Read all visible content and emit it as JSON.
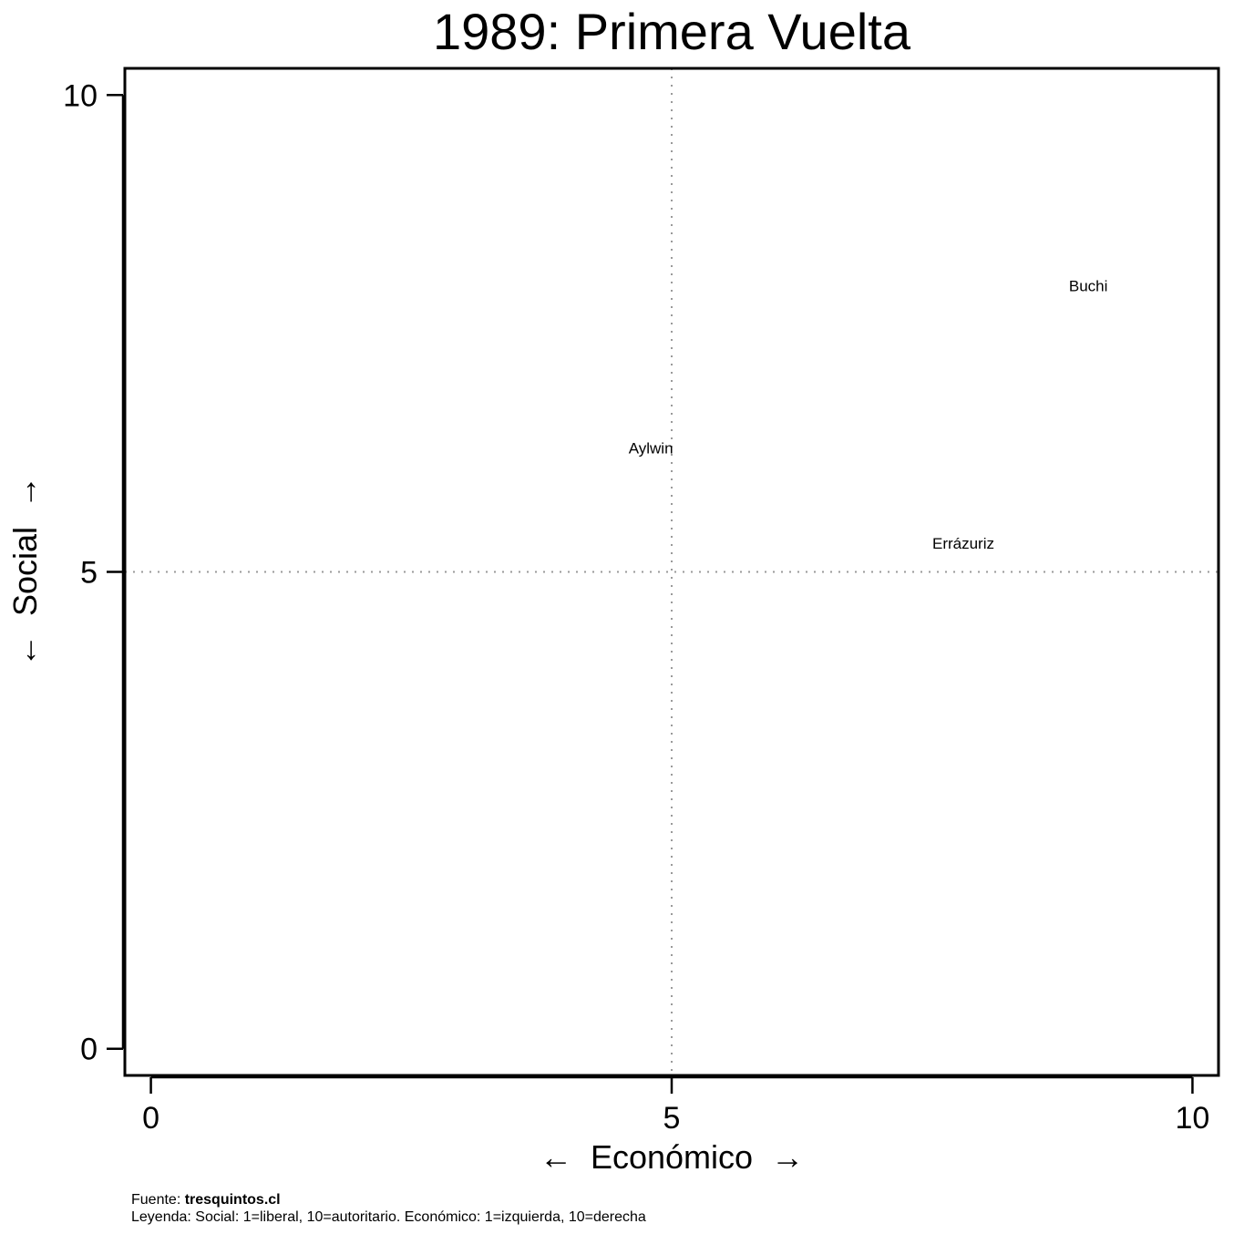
{
  "chart_data": {
    "type": "scatter",
    "title": "1989: Primera Vuelta",
    "xlabel": "←  Económico  →",
    "ylabel": "←  Social  →",
    "xlim": [
      -0.25,
      10.25
    ],
    "ylim": [
      -0.28,
      10.28
    ],
    "xticks": [
      0,
      5,
      10
    ],
    "yticks": [
      0,
      5,
      10
    ],
    "reference_lines": {
      "x": 5,
      "y": 5
    },
    "grid": false,
    "points": [
      {
        "label": "Buchi",
        "x": 9.0,
        "y": 8.0
      },
      {
        "label": "Aylwin",
        "x": 4.8,
        "y": 6.3
      },
      {
        "label": "Errázuriz",
        "x": 7.8,
        "y": 5.3
      }
    ]
  },
  "footer": {
    "source_prefix": "Fuente: ",
    "source_name": "tresquintos.cl",
    "legend_text": "Leyenda: Social: 1=liberal, 10=autoritario. Económico: 1=izquierda, 10=derecha"
  }
}
